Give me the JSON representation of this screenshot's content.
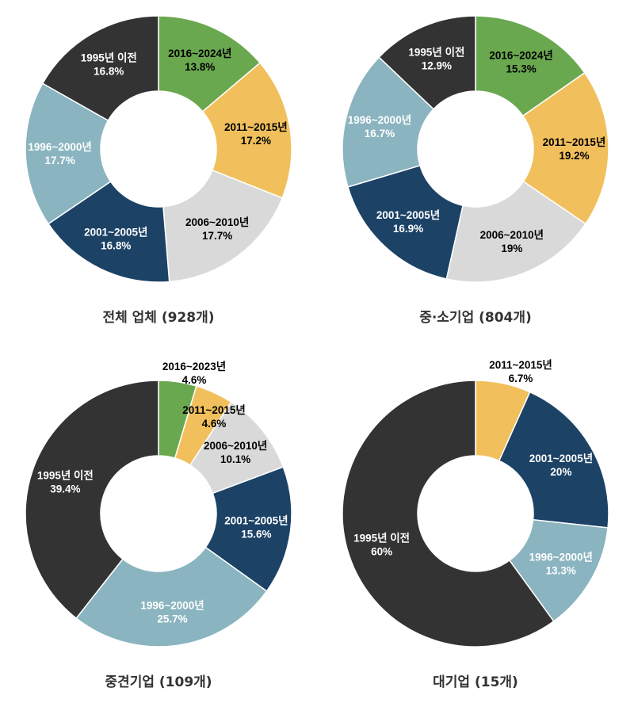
{
  "colors": {
    "2016": "#6aa84f",
    "2011": "#f1c05c",
    "2006": "#d9d9d9",
    "2001": "#1c4266",
    "1996": "#8ab4c0",
    "1995": "#333333"
  },
  "chart_data": [
    {
      "type": "pie",
      "title": "전체 업체 (928개)",
      "slices": [
        {
          "label": "2016~2024년",
          "value": 13.8,
          "color_key": "2016"
        },
        {
          "label": "2011~2015년",
          "value": 17.2,
          "color_key": "2011"
        },
        {
          "label": "2006~2010년",
          "value": 17.7,
          "color_key": "2006"
        },
        {
          "label": "2001~2005년",
          "value": 16.8,
          "color_key": "2001"
        },
        {
          "label": "1996~2000년",
          "value": 17.7,
          "color_key": "1996"
        },
        {
          "label": "1995년 이전",
          "value": 16.8,
          "color_key": "1995"
        }
      ]
    },
    {
      "type": "pie",
      "title": "중·소기업 (804개)",
      "slices": [
        {
          "label": "2016~2024년",
          "value": 15.3,
          "color_key": "2016"
        },
        {
          "label": "2011~2015년",
          "value": 19.2,
          "color_key": "2011"
        },
        {
          "label": "2006~2010년",
          "value": 19,
          "color_key": "2006"
        },
        {
          "label": "2001~2005년",
          "value": 16.9,
          "color_key": "2001"
        },
        {
          "label": "1996~2000년",
          "value": 16.7,
          "color_key": "1996"
        },
        {
          "label": "1995년 이전",
          "value": 12.9,
          "color_key": "1995"
        }
      ]
    },
    {
      "type": "pie",
      "title": "중견기업 (109개)",
      "slices": [
        {
          "label": "2016~2023년",
          "value": 4.6,
          "color_key": "2016"
        },
        {
          "label": "2011~2015년",
          "value": 4.6,
          "color_key": "2011"
        },
        {
          "label": "2006~2010년",
          "value": 10.1,
          "color_key": "2006"
        },
        {
          "label": "2001~2005년",
          "value": 15.6,
          "color_key": "2001"
        },
        {
          "label": "1996~2000년",
          "value": 25.7,
          "color_key": "1996"
        },
        {
          "label": "1995년 이전",
          "value": 39.4,
          "color_key": "1995"
        }
      ]
    },
    {
      "type": "pie",
      "title": "대기업 (15개)",
      "slices": [
        {
          "label": "2011~2015년",
          "value": 6.7,
          "color_key": "2011"
        },
        {
          "label": "2001~2005년",
          "value": 20,
          "color_key": "2001"
        },
        {
          "label": "1996~2000년",
          "value": 13.3,
          "color_key": "1996"
        },
        {
          "label": "1995년 이전",
          "value": 60,
          "color_key": "1995"
        }
      ]
    }
  ]
}
